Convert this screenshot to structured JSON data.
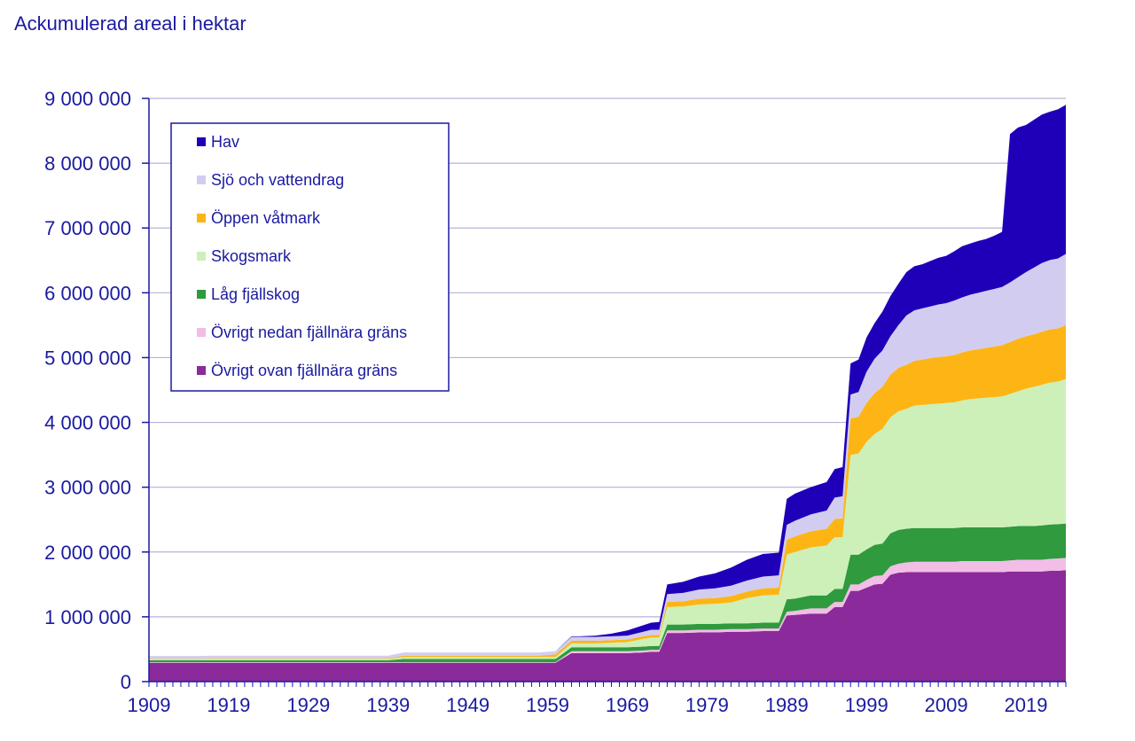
{
  "chart_data": {
    "type": "area",
    "stacked": true,
    "title": "Ackumulerad areal i hektar",
    "xlabel": "",
    "ylabel": "",
    "xlim": [
      1909,
      2024
    ],
    "ylim": [
      0,
      9000000
    ],
    "y_ticks": [
      0,
      1000000,
      2000000,
      3000000,
      4000000,
      5000000,
      6000000,
      7000000,
      8000000,
      9000000
    ],
    "y_tick_labels": [
      "0",
      "1 000 000",
      "2 000 000",
      "3 000 000",
      "4 000 000",
      "5 000 000",
      "6 000 000",
      "7 000 000",
      "8 000 000",
      "9 000 000"
    ],
    "x_ticks": [
      1909,
      1919,
      1929,
      1939,
      1949,
      1959,
      1969,
      1979,
      1989,
      1999,
      2009,
      2019
    ],
    "x_tick_labels": [
      "1909",
      "1919",
      "1929",
      "1939",
      "1949",
      "1959",
      "1969",
      "1979",
      "1989",
      "1999",
      "2009",
      "2019"
    ],
    "grid": "horizontal",
    "legend_position": "top-left",
    "x": [
      1909,
      1911,
      1913,
      1915,
      1917,
      1919,
      1921,
      1923,
      1925,
      1927,
      1929,
      1931,
      1933,
      1935,
      1937,
      1939,
      1941,
      1942,
      1944,
      1946,
      1948,
      1950,
      1952,
      1954,
      1956,
      1958,
      1960,
      1962,
      1963,
      1965,
      1967,
      1969,
      1971,
      1972,
      1973,
      1974,
      1976,
      1978,
      1980,
      1982,
      1984,
      1986,
      1988,
      1989,
      1990,
      1992,
      1994,
      1995,
      1996,
      1997,
      1998,
      1999,
      2000,
      2001,
      2002,
      2003,
      2004,
      2005,
      2006,
      2007,
      2008,
      2009,
      2010,
      2011,
      2012,
      2013,
      2014,
      2015,
      2016,
      2017,
      2018,
      2019,
      2020,
      2021,
      2022,
      2023,
      2024
    ],
    "series": [
      {
        "name": "Övrigt ovan fjällnära gräns",
        "color": "#8b2a9a",
        "values": [
          290000,
          290000,
          290000,
          290000,
          290000,
          290000,
          290000,
          290000,
          290000,
          290000,
          290000,
          290000,
          290000,
          290000,
          290000,
          290000,
          290000,
          290000,
          290000,
          290000,
          290000,
          290000,
          290000,
          290000,
          290000,
          290000,
          290000,
          440000,
          440000,
          440000,
          440000,
          440000,
          450000,
          460000,
          460000,
          750000,
          750000,
          760000,
          760000,
          770000,
          770000,
          780000,
          780000,
          1020000,
          1030000,
          1050000,
          1050000,
          1150000,
          1150000,
          1400000,
          1400000,
          1450000,
          1500000,
          1510000,
          1650000,
          1680000,
          1690000,
          1690000,
          1690000,
          1690000,
          1690000,
          1690000,
          1690000,
          1690000,
          1690000,
          1690000,
          1690000,
          1690000,
          1690000,
          1700000,
          1700000,
          1700000,
          1700000,
          1700000,
          1710000,
          1710000,
          1720000
        ]
      },
      {
        "name": "Övrigt nedan fjällnära gräns",
        "color": "#f2bde6",
        "values": [
          10000,
          10000,
          10000,
          10000,
          10000,
          10000,
          10000,
          10000,
          10000,
          10000,
          10000,
          10000,
          10000,
          10000,
          10000,
          10000,
          10000,
          10000,
          10000,
          10000,
          10000,
          10000,
          10000,
          10000,
          10000,
          10000,
          10000,
          30000,
          30000,
          30000,
          30000,
          30000,
          30000,
          30000,
          30000,
          40000,
          40000,
          40000,
          40000,
          40000,
          40000,
          40000,
          40000,
          60000,
          60000,
          80000,
          80000,
          80000,
          80000,
          100000,
          100000,
          120000,
          130000,
          130000,
          130000,
          140000,
          150000,
          160000,
          160000,
          160000,
          160000,
          160000,
          160000,
          170000,
          170000,
          170000,
          170000,
          170000,
          170000,
          170000,
          180000,
          180000,
          180000,
          180000,
          185000,
          190000,
          190000
        ]
      },
      {
        "name": "Låg fjällskog",
        "color": "#2f9a3e",
        "values": [
          30000,
          30000,
          30000,
          30000,
          30000,
          30000,
          30000,
          30000,
          30000,
          30000,
          30000,
          30000,
          30000,
          30000,
          30000,
          30000,
          50000,
          50000,
          50000,
          50000,
          50000,
          50000,
          50000,
          50000,
          50000,
          50000,
          50000,
          60000,
          60000,
          60000,
          60000,
          60000,
          60000,
          60000,
          60000,
          90000,
          90000,
          90000,
          90000,
          90000,
          90000,
          90000,
          90000,
          190000,
          190000,
          200000,
          200000,
          200000,
          200000,
          460000,
          460000,
          470000,
          480000,
          490000,
          510000,
          520000,
          520000,
          520000,
          520000,
          520000,
          520000,
          520000,
          520000,
          520000,
          520000,
          520000,
          520000,
          520000,
          520000,
          520000,
          520000,
          520000,
          520000,
          530000,
          530000,
          530000,
          530000
        ]
      },
      {
        "name": "Skogsmark",
        "color": "#cdf0b8",
        "values": [
          20000,
          20000,
          20000,
          20000,
          20000,
          20000,
          20000,
          20000,
          20000,
          20000,
          20000,
          20000,
          20000,
          20000,
          20000,
          20000,
          30000,
          30000,
          30000,
          30000,
          30000,
          30000,
          30000,
          30000,
          30000,
          30000,
          30000,
          60000,
          60000,
          60000,
          70000,
          80000,
          120000,
          130000,
          130000,
          270000,
          280000,
          300000,
          310000,
          320000,
          390000,
          420000,
          430000,
          690000,
          720000,
          740000,
          770000,
          800000,
          800000,
          1540000,
          1560000,
          1660000,
          1710000,
          1770000,
          1790000,
          1830000,
          1850000,
          1890000,
          1900000,
          1910000,
          1920000,
          1930000,
          1940000,
          1960000,
          1980000,
          1990000,
          2000000,
          2010000,
          2020000,
          2050000,
          2080000,
          2120000,
          2150000,
          2170000,
          2190000,
          2200000,
          2230000
        ]
      },
      {
        "name": "Öppen våtmark",
        "color": "#fdb515",
        "values": [
          5000,
          5000,
          5000,
          5000,
          10000,
          10000,
          10000,
          10000,
          10000,
          10000,
          10000,
          10000,
          10000,
          10000,
          10000,
          10000,
          20000,
          20000,
          20000,
          20000,
          20000,
          20000,
          20000,
          20000,
          20000,
          20000,
          40000,
          40000,
          40000,
          40000,
          40000,
          40000,
          40000,
          40000,
          40000,
          80000,
          80000,
          90000,
          90000,
          100000,
          100000,
          110000,
          110000,
          230000,
          240000,
          250000,
          260000,
          280000,
          290000,
          560000,
          570000,
          600000,
          630000,
          650000,
          660000,
          670000,
          680000,
          690000,
          700000,
          710000,
          720000,
          720000,
          730000,
          740000,
          750000,
          760000,
          770000,
          780000,
          790000,
          800000,
          810000,
          810000,
          810000,
          820000,
          820000,
          820000,
          830000
        ]
      },
      {
        "name": "Sjö och vattendrag",
        "color": "#d2cdf0",
        "values": [
          40000,
          40000,
          40000,
          40000,
          40000,
          40000,
          40000,
          40000,
          40000,
          40000,
          40000,
          40000,
          40000,
          40000,
          40000,
          40000,
          50000,
          50000,
          50000,
          50000,
          50000,
          50000,
          50000,
          50000,
          50000,
          50000,
          50000,
          60000,
          60000,
          60000,
          60000,
          60000,
          70000,
          80000,
          80000,
          120000,
          130000,
          140000,
          150000,
          160000,
          170000,
          180000,
          190000,
          230000,
          240000,
          260000,
          280000,
          330000,
          340000,
          370000,
          380000,
          480000,
          530000,
          560000,
          590000,
          660000,
          760000,
          780000,
          790000,
          800000,
          810000,
          820000,
          840000,
          850000,
          860000,
          870000,
          880000,
          890000,
          900000,
          920000,
          950000,
          990000,
          1030000,
          1060000,
          1070000,
          1080000,
          1100000
        ]
      },
      {
        "name": "Hav",
        "color": "#1f00b8",
        "values": [
          0,
          0,
          0,
          0,
          0,
          0,
          0,
          0,
          0,
          0,
          0,
          0,
          0,
          0,
          0,
          0,
          0,
          0,
          0,
          0,
          0,
          0,
          0,
          0,
          0,
          0,
          0,
          10000,
          10000,
          20000,
          40000,
          80000,
          100000,
          110000,
          120000,
          150000,
          170000,
          200000,
          230000,
          280000,
          320000,
          350000,
          350000,
          400000,
          420000,
          420000,
          440000,
          440000,
          450000,
          480000,
          500000,
          530000,
          550000,
          600000,
          620000,
          640000,
          670000,
          680000,
          680000,
          700000,
          720000,
          730000,
          760000,
          790000,
          790000,
          800000,
          800000,
          820000,
          850000,
          2290000,
          2310000,
          2270000,
          2280000,
          2290000,
          2290000,
          2300000,
          2300000
        ]
      }
    ]
  }
}
